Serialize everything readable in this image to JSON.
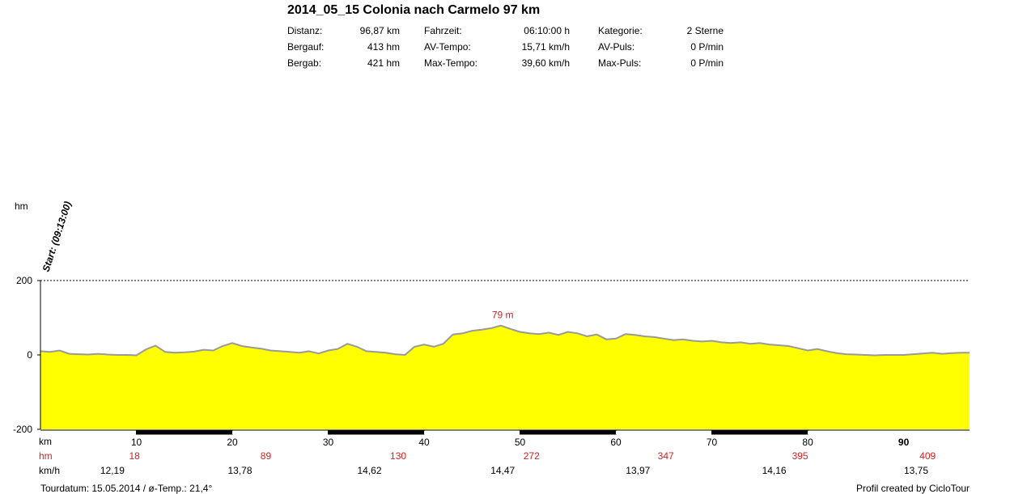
{
  "title": "2014_05_15 Colonia nach Carmelo 97 km",
  "stats": [
    {
      "label": "Distanz:",
      "value": "96,87 km"
    },
    {
      "label": "Bergauf:",
      "value": "413 hm"
    },
    {
      "label": "Bergab:",
      "value": "421 hm"
    },
    {
      "label": "Fahrzeit:",
      "value": "06:10:00 h"
    },
    {
      "label": "AV-Tempo:",
      "value": "15,71 km/h"
    },
    {
      "label": "Max-Tempo:",
      "value": "39,60 km/h"
    },
    {
      "label": "Kategorie:",
      "value": "2 Sterne"
    },
    {
      "label": "AV-Puls:",
      "value": "0 P/min"
    },
    {
      "label": "Max-Puls:",
      "value": "0 P/min"
    }
  ],
  "start_label": "Start: (09:13:00)",
  "rows": {
    "km_label": "km",
    "hm_label": "hm",
    "kmh_label": "km/h",
    "hm_values": [
      "18",
      "89",
      "130",
      "272",
      "347",
      "395",
      "409"
    ],
    "kmh_values": [
      "12,19",
      "13,78",
      "14,62",
      "14,47",
      "13,97",
      "14,16",
      "13,75"
    ]
  },
  "footer": {
    "left": "Tourdatum: 15.05.2014  /  ø-Temp.: 21,4°",
    "right": "Profil created by CicloTour"
  },
  "colors": {
    "fill": "#ffff00",
    "outline": "#9a9a9a",
    "highlight": "#d42020",
    "band": "#000000"
  },
  "chart_data": {
    "type": "area",
    "ylabel": "hm",
    "xlabel": "km",
    "y_ticks": [
      200,
      0,
      -200
    ],
    "ylim": [
      -200,
      200
    ],
    "xlim": [
      0,
      96.87
    ],
    "x_ticks": [
      10,
      20,
      30,
      40,
      50,
      60,
      70,
      80,
      90
    ],
    "gridlines": [
      200,
      0
    ],
    "max_annotation": "79 m",
    "max_point": {
      "x": 48.2,
      "y": 79
    },
    "x": [
      0,
      1,
      2,
      3,
      4,
      5,
      6,
      7,
      8,
      9,
      10,
      11,
      12,
      13,
      14,
      15,
      16,
      17,
      18,
      19,
      20,
      21,
      22,
      23,
      24,
      25,
      26,
      27,
      28,
      29,
      30,
      31,
      32,
      33,
      34,
      35,
      36,
      37,
      38,
      39,
      40,
      41,
      42,
      43,
      44,
      45,
      46,
      47,
      48,
      49,
      50,
      51,
      52,
      53,
      54,
      55,
      56,
      57,
      58,
      59,
      60,
      61,
      62,
      63,
      64,
      65,
      66,
      67,
      68,
      69,
      70,
      71,
      72,
      73,
      74,
      75,
      76,
      77,
      78,
      79,
      80,
      81,
      82,
      83,
      84,
      85,
      86,
      87,
      88,
      89,
      90,
      91,
      92,
      93,
      94,
      95,
      96,
      96.87
    ],
    "y": [
      10,
      8,
      12,
      3,
      2,
      1,
      3,
      1,
      0,
      0,
      -1,
      15,
      25,
      8,
      6,
      7,
      9,
      14,
      12,
      24,
      32,
      24,
      20,
      17,
      12,
      10,
      8,
      6,
      10,
      4,
      12,
      16,
      30,
      22,
      10,
      8,
      6,
      2,
      0,
      22,
      28,
      22,
      30,
      55,
      58,
      65,
      68,
      72,
      79,
      70,
      62,
      58,
      56,
      60,
      54,
      62,
      58,
      50,
      55,
      42,
      44,
      56,
      54,
      50,
      48,
      44,
      40,
      42,
      38,
      36,
      38,
      34,
      32,
      34,
      30,
      32,
      28,
      26,
      24,
      18,
      12,
      16,
      10,
      5,
      2,
      1,
      0,
      -1,
      0,
      0,
      0,
      2,
      4,
      6,
      3,
      5,
      6,
      6
    ]
  }
}
